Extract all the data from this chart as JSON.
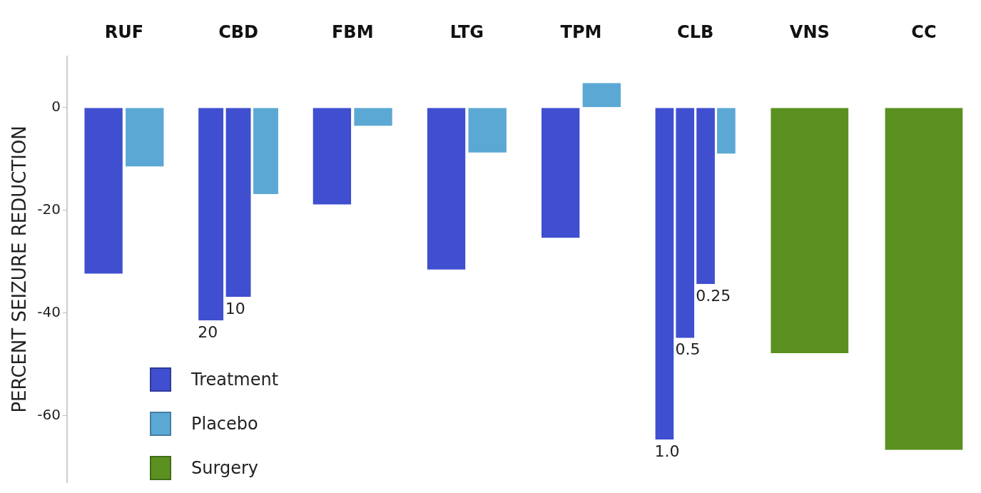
{
  "chart_data": {
    "type": "bar",
    "ylabel": "PERCENT SEIZURE REDUCTION",
    "categories": [
      "RUF",
      "CBD",
      "FBM",
      "LTG",
      "TPM",
      "CLB",
      "VNS",
      "CC"
    ],
    "series": [
      {
        "name": "Treatment",
        "color": "#3f4fcf",
        "values": [
          -32.5,
          -41.6,
          -19,
          -31.7,
          -25.5,
          -64.8,
          null,
          null
        ]
      },
      {
        "color": "#3f4fcf",
        "values": [
          null,
          -37,
          null,
          null,
          null,
          -45,
          null,
          null
        ]
      },
      {
        "color": "#3f4fcf",
        "values": [
          null,
          null,
          null,
          null,
          null,
          -34.5,
          null,
          null
        ]
      },
      {
        "name": "Placebo",
        "color": "#5ba8d4",
        "values": [
          -11.6,
          -17,
          -3.7,
          -8.9,
          4.9,
          -9.1,
          null,
          null
        ]
      },
      {
        "name": "Surgery",
        "color": "#5a9020",
        "values": [
          null,
          null,
          null,
          null,
          null,
          null,
          -48,
          -66.8
        ]
      }
    ],
    "annotations": [
      "20",
      {
        "text": "10",
        "x": "CBD",
        "y": -37
      },
      "1.0",
      {
        "text": "0.5",
        "x": "CLB",
        "y": -45
      },
      {
        "text": "0.25",
        "x": "CLB",
        "y": -34.5
      }
    ],
    "ylim": [
      -73,
      10
    ],
    "yticks": [
      -60,
      -40,
      -20,
      0
    ],
    "grid": false,
    "legend": "bottom left"
  }
}
